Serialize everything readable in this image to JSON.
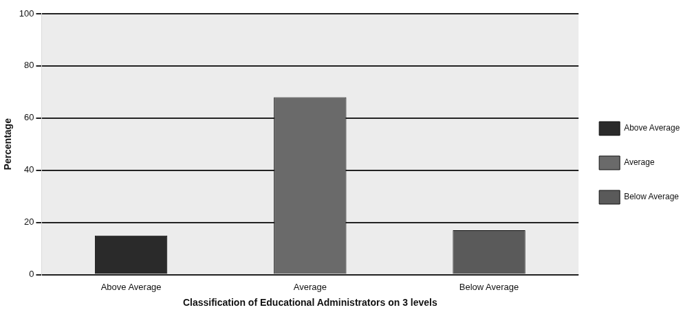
{
  "chart_data": {
    "type": "bar",
    "xlabel": "Classification of Educational Administrators on 3 levels",
    "ylabel": "Percentage",
    "categories": [
      "Above Average",
      "Average",
      "Below Average"
    ],
    "series": [
      {
        "name": "Above Average",
        "color": "#2a2a2a",
        "values": [
          15,
          null,
          null
        ]
      },
      {
        "name": "Average",
        "color": "#6a6a6a",
        "values": [
          null,
          68,
          null
        ]
      },
      {
        "name": "Below Average",
        "color": "#5a5a5a",
        "values": [
          null,
          null,
          17
        ]
      }
    ],
    "ylim": [
      0,
      100
    ],
    "yticks": [
      0,
      20,
      40,
      60,
      80,
      100
    ],
    "grid": "y",
    "legend": "right"
  }
}
